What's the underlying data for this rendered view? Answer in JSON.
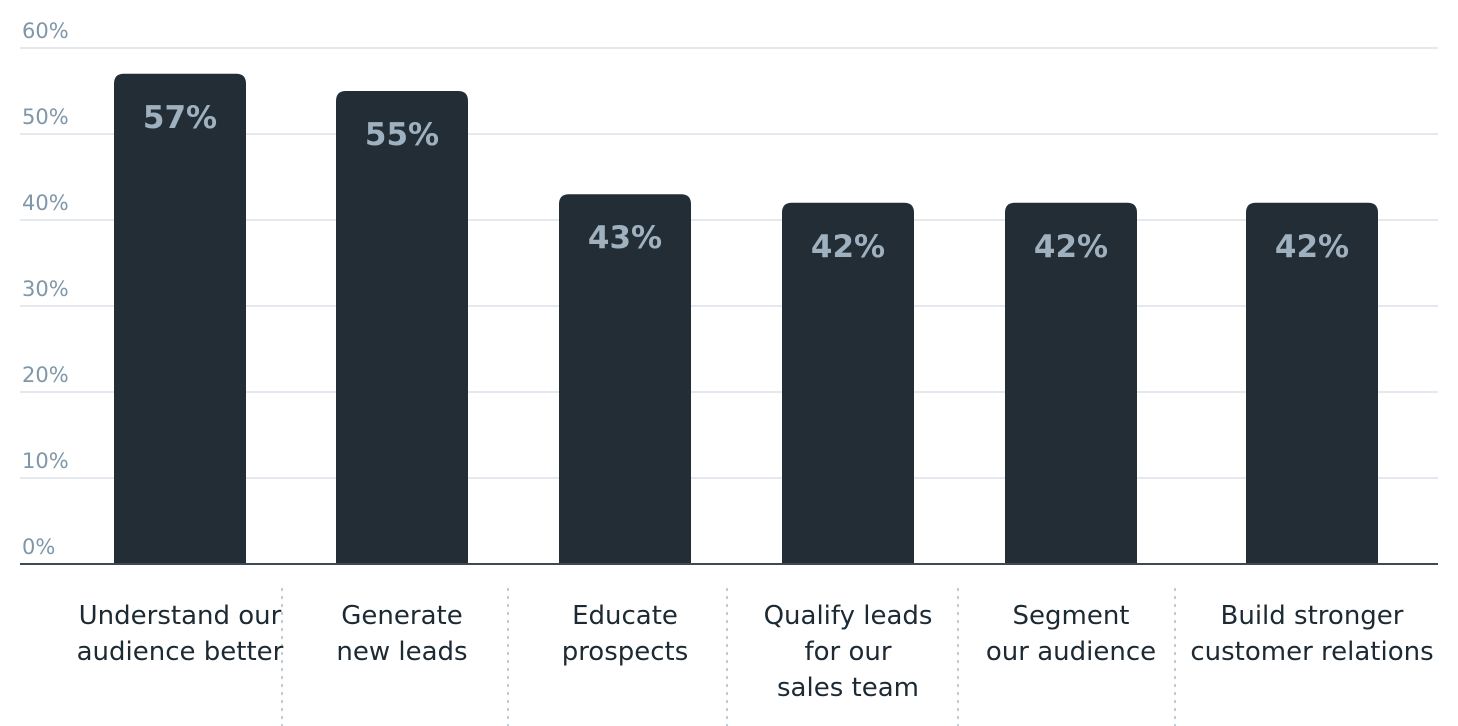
{
  "chart_data": {
    "type": "bar",
    "categories": [
      [
        "Understand our",
        "audience better"
      ],
      [
        "Generate",
        "new leads"
      ],
      [
        "Educate",
        "prospects"
      ],
      [
        "Qualify leads",
        "for our",
        "sales team"
      ],
      [
        "Segment",
        "our audience"
      ],
      [
        "Build stronger",
        "customer relations"
      ]
    ],
    "values": [
      57,
      55,
      43,
      42,
      42,
      42
    ],
    "value_labels": [
      "57%",
      "55%",
      "43%",
      "42%",
      "42%",
      "42%"
    ],
    "ylim": [
      0,
      60
    ],
    "yticks": [
      0,
      10,
      20,
      30,
      40,
      50,
      60
    ],
    "ytick_labels": [
      "0%",
      "10%",
      "20%",
      "30%",
      "40%",
      "50%",
      "60%"
    ],
    "grid": true,
    "title": "",
    "xlabel": "",
    "ylabel": "",
    "colors": {
      "bar": "#222d36",
      "value_label": "#9fb1bf",
      "tick": "#7f97a8",
      "grid": "#c7d3dc"
    }
  }
}
